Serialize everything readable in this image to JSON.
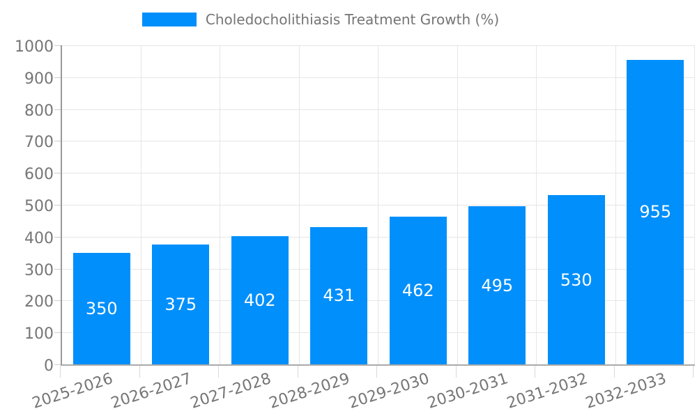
{
  "chart_data": {
    "type": "bar",
    "title": "",
    "legend": "Choledocholithiasis Treatment Growth (%)",
    "legend_position": "top-center",
    "categories": [
      "2025-2026",
      "2026-2027",
      "2027-2028",
      "2028-2029",
      "2029-2030",
      "2030-2031",
      "2031-2032",
      "2032-2033"
    ],
    "values": [
      350,
      375,
      402,
      431,
      462,
      495,
      530,
      955
    ],
    "value_labels_shown": true,
    "xlabel": "",
    "ylabel": "",
    "ylim": [
      0,
      1000
    ],
    "yticks": [
      0,
      100,
      200,
      300,
      400,
      500,
      600,
      700,
      800,
      900,
      1000
    ],
    "grid": true,
    "colors": {
      "bar": "#008FFB",
      "value_text": "#ffffff",
      "axis_text": "#757575",
      "grid_line": "#e6e6e6",
      "axis_line": "#9e9e9e"
    }
  }
}
